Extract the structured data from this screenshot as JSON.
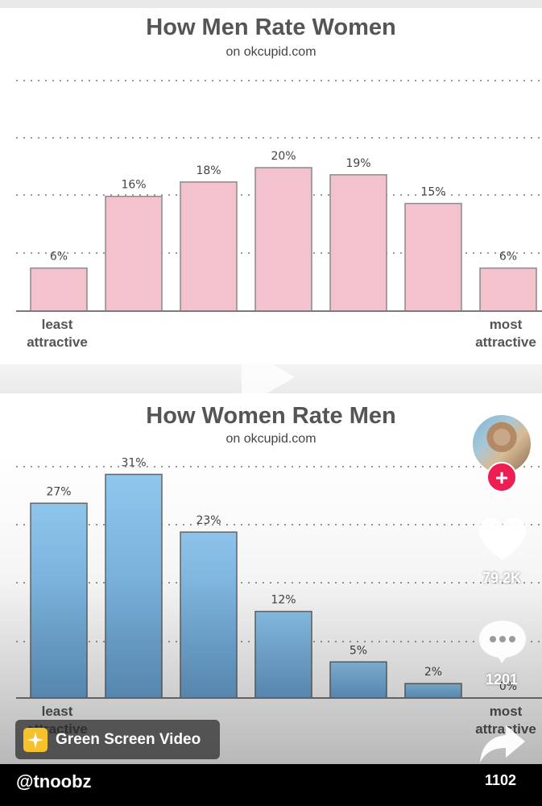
{
  "chart_data": [
    {
      "type": "bar",
      "title": "How Men Rate Women",
      "subtitle": "on okcupid.com",
      "categories": [
        "least attractive",
        "",
        "",
        "",
        "",
        "",
        "most attractive"
      ],
      "values": [
        6,
        16,
        18,
        20,
        19,
        15,
        6
      ],
      "labels": [
        "6%",
        "16%",
        "18%",
        "20%",
        "19%",
        "15%",
        "6%"
      ],
      "xlabel": "",
      "ylabel": "",
      "ylim": [
        0,
        32
      ],
      "grid": true,
      "color": "#f4c2cd"
    },
    {
      "type": "bar",
      "title": "How Women Rate Men",
      "subtitle": "on okcupid.com",
      "categories": [
        "least attractive",
        "",
        "",
        "",
        "",
        "",
        "most attractive"
      ],
      "values": [
        27,
        31,
        23,
        12,
        5,
        2,
        0
      ],
      "labels": [
        "27%",
        "31%",
        "23%",
        "12%",
        "5%",
        "2%",
        "0%"
      ],
      "xlabel": "",
      "ylabel": "",
      "ylim": [
        0,
        33
      ],
      "grid": true,
      "color": "#7fb3dc"
    }
  ],
  "sidebar": {
    "likes": "79.2K",
    "comments": "1201",
    "shares": "1102"
  },
  "effect": {
    "label": "Green Screen Video"
  },
  "user": {
    "handle": "@tnoobz"
  },
  "icons": {
    "play": "play-icon",
    "heart": "heart-icon",
    "comment": "comment-icon",
    "share": "share-icon",
    "follow": "plus-icon",
    "effect": "sparkle-icon"
  },
  "colors": {
    "follow": "#ee1d52",
    "effect": "#f7c12c"
  }
}
